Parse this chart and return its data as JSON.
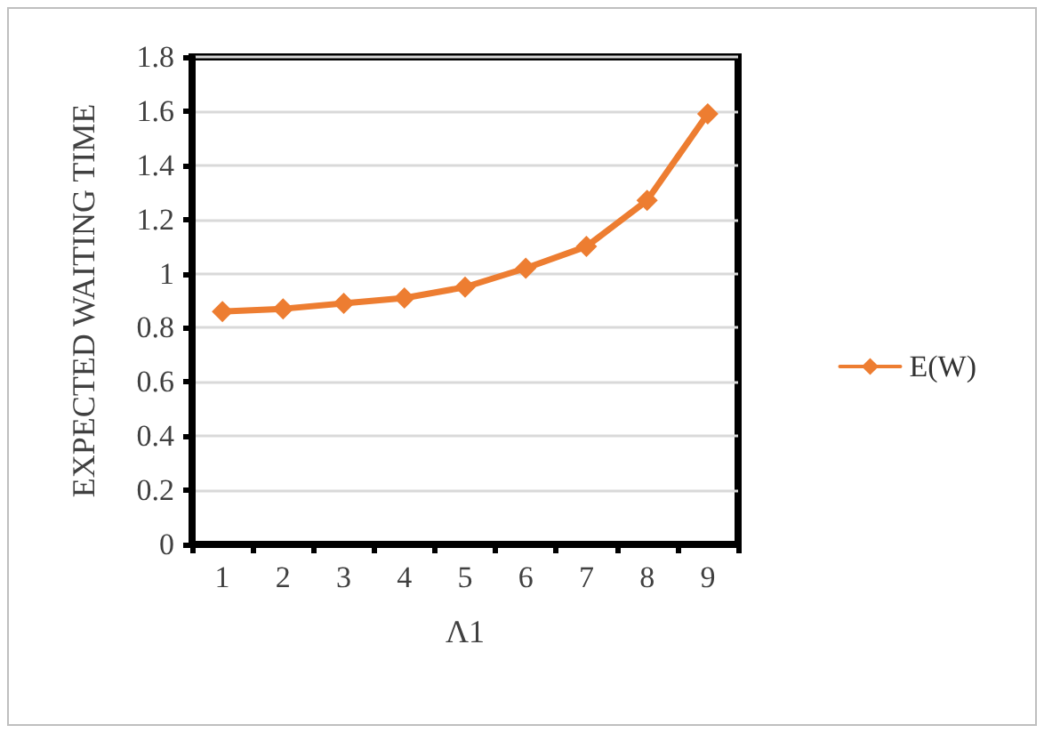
{
  "chart_data": {
    "type": "line",
    "xlabel": "Λ1",
    "ylabel": "EXPECTED WAITING TIME",
    "categories": [
      "1",
      "2",
      "3",
      "4",
      "5",
      "6",
      "7",
      "8",
      "9"
    ],
    "series": [
      {
        "name": "E(W)",
        "color": "#ed7d31",
        "values": [
          0.86,
          0.87,
          0.89,
          0.91,
          0.95,
          1.02,
          1.1,
          1.27,
          1.59
        ]
      }
    ],
    "ylim": [
      0,
      1.8
    ],
    "yticks": [
      0,
      0.2,
      0.4,
      0.6,
      0.8,
      1,
      1.2,
      1.4,
      1.6,
      1.8
    ],
    "grid": "y",
    "legend": "right",
    "marker": "diamond",
    "line_style": "solid"
  }
}
